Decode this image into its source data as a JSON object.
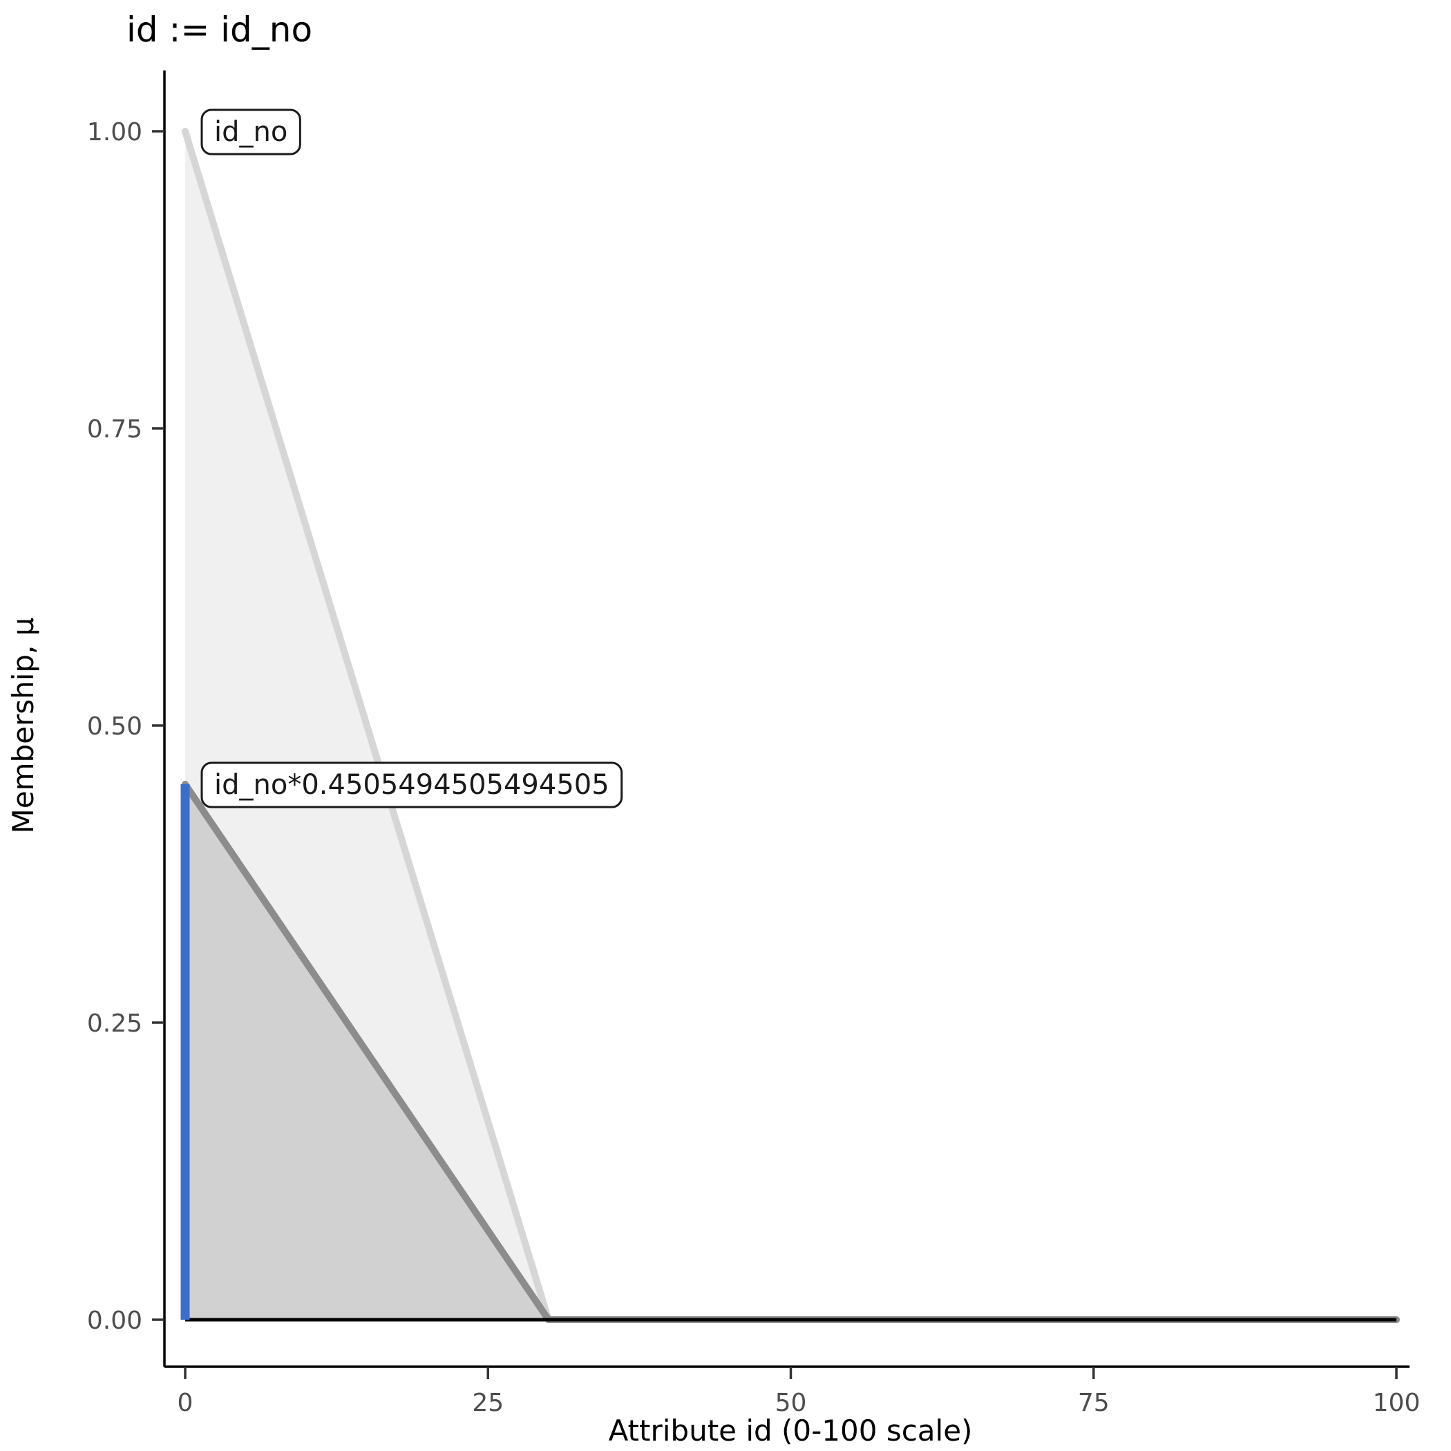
{
  "chart_data": {
    "type": "area",
    "title": "id := id_no",
    "xlabel": "Attribute id (0-100 scale)",
    "ylabel": "Membership, μ",
    "xlim": [
      0,
      100
    ],
    "ylim": [
      0,
      1
    ],
    "x_ticks": [
      "0",
      "25",
      "50",
      "75",
      "100"
    ],
    "y_ticks": [
      "0.00",
      "0.25",
      "0.50",
      "0.75",
      "1.00"
    ],
    "grid": false,
    "legend": false,
    "series": [
      {
        "name": "id_no",
        "label": "id_no",
        "points": [
          [
            0,
            1.0
          ],
          [
            30,
            0.0
          ],
          [
            100,
            0.0
          ]
        ],
        "line_color": "#d6d6d6",
        "fill_color": "rgba(128,128,128,0.12)",
        "label_anchor": [
          0,
          1.0
        ]
      },
      {
        "name": "id_no-scaled",
        "label": "id_no*0.4505494505494505",
        "points": [
          [
            0,
            0.4505494505494505
          ],
          [
            30,
            0.0
          ],
          [
            100,
            0.0
          ]
        ],
        "line_color": "#8c8c8c",
        "fill_color": "rgba(128,128,128,0.28)",
        "label_anchor": [
          0,
          0.4505494505494505
        ]
      }
    ],
    "baseline_color": "#000000",
    "activation_line": {
      "x": 0,
      "y0": 0,
      "y1": 0.4505494505494505,
      "color": "#3B6DCC"
    }
  }
}
